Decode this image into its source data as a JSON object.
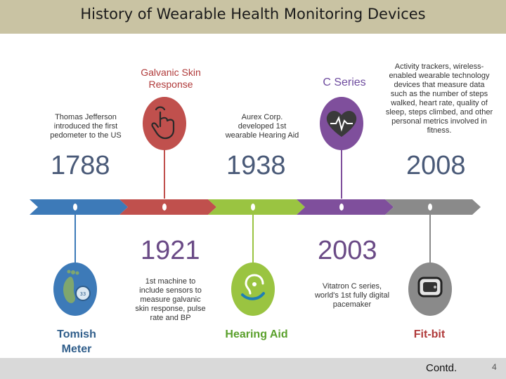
{
  "title": "History of Wearable Health Monitoring Devices",
  "footer": {
    "contd": "Contd.",
    "page_number": "4"
  },
  "colors": {
    "blue": "#3d7ab8",
    "red": "#c0504d",
    "green": "#9ac441",
    "purple": "#7f4f9c",
    "gray": "#8a8a8a"
  },
  "events": [
    {
      "year": "1788",
      "label": "Tomish Meter",
      "description": "Thomas Jefferson introduced the first pedometer to the US",
      "icon": "footprint-icon"
    },
    {
      "year": "1921",
      "label": "Galvanic Skin Response",
      "description": "1st machine to include sensors to measure galvanic skin response, pulse rate and BP",
      "icon": "hand-touch-icon"
    },
    {
      "year": "1938",
      "label": "Hearing Aid",
      "description": "Aurex Corp. developed 1st wearable Hearing Aid",
      "icon": "ear-icon"
    },
    {
      "year": "2003",
      "label": "C Series",
      "description": "Vitatron C series, world's 1st fully digital pacemaker",
      "icon": "heart-pulse-icon"
    },
    {
      "year": "2008",
      "label": "Fit-bit",
      "description": "Activity trackers, wireless-enabled wearable technology devices that measure data such as the number of steps walked, heart rate, quality of sleep, steps climbed, and other personal metrics involved in fitness.",
      "icon": "fitness-band-icon"
    }
  ]
}
